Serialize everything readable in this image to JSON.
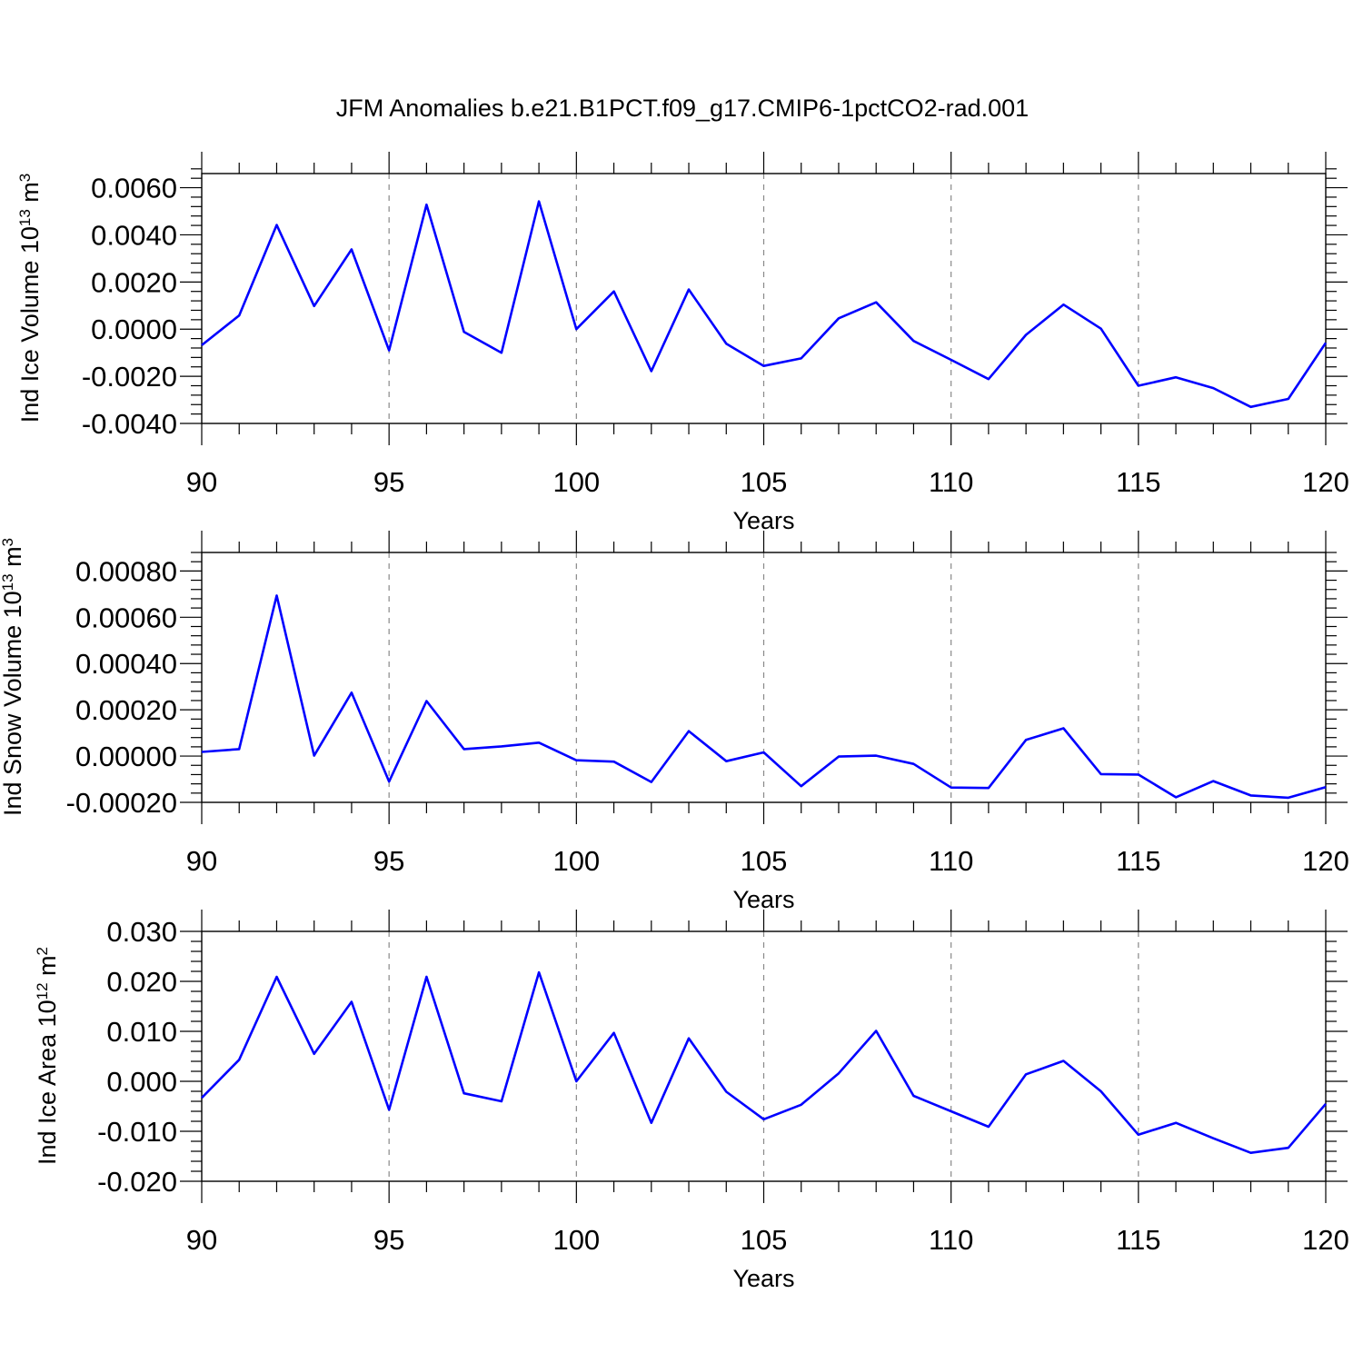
{
  "title": "JFM Anomalies b.e21.B1PCT.f09_g17.CMIP6-1pctCO2-rad.001",
  "colors": {
    "line": "#0000ff",
    "grid": "#888888"
  },
  "chart_data": [
    {
      "type": "line",
      "ylabel": "Ind Ice Volume 10",
      "ylabel_exp": "13",
      "ylabel_unit": "m",
      "ylabel_unit_exp": "3",
      "xlabel": "Years",
      "xlim": [
        90,
        120
      ],
      "ylim": [
        -0.004,
        0.0066
      ],
      "x_ticks": [
        90,
        95,
        100,
        105,
        110,
        115,
        120
      ],
      "x_ticklabels": [
        "90",
        "95",
        "100",
        "105",
        "110",
        "115",
        "120"
      ],
      "y_ticks": [
        -0.004,
        -0.002,
        0,
        0.002,
        0.004,
        0.006
      ],
      "y_ticklabels": [
        "-0.0040",
        "-0.0020",
        "0.0000",
        "0.0020",
        "0.0040",
        "0.0060"
      ],
      "y_minor_step": 0.0004,
      "grid_x": true,
      "x": [
        90,
        91,
        92,
        93,
        94,
        95,
        96,
        97,
        98,
        99,
        100,
        101,
        102,
        103,
        104,
        105,
        106,
        107,
        108,
        109,
        110,
        111,
        112,
        113,
        114,
        115,
        116,
        117,
        118,
        119,
        120
      ],
      "values": [
        -0.00068,
        0.00058,
        0.00442,
        0.00098,
        0.00338,
        -0.0009,
        0.00528,
        -0.00012,
        -0.001,
        0.00542,
        0.0,
        0.0016,
        -0.00178,
        0.00168,
        -0.00062,
        -0.00156,
        -0.00124,
        0.00046,
        0.00114,
        -0.0005,
        -0.0013,
        -0.00212,
        -0.00024,
        0.00104,
        2e-05,
        -0.0024,
        -0.00204,
        -0.0025,
        -0.0033,
        -0.00296,
        -0.00058
      ]
    },
    {
      "type": "line",
      "ylabel": "Ind Snow Volume 10",
      "ylabel_exp": "13",
      "ylabel_unit": "m",
      "ylabel_unit_exp": "3",
      "xlabel": "Years",
      "xlim": [
        90,
        120
      ],
      "ylim": [
        -0.0002,
        0.00088
      ],
      "x_ticks": [
        90,
        95,
        100,
        105,
        110,
        115,
        120
      ],
      "x_ticklabels": [
        "90",
        "95",
        "100",
        "105",
        "110",
        "115",
        "120"
      ],
      "y_ticks": [
        -0.0002,
        0,
        0.0002,
        0.0004,
        0.0006,
        0.0008
      ],
      "y_ticklabels": [
        "-0.00020",
        "0.00000",
        "0.00020",
        "0.00040",
        "0.00060",
        "0.00080"
      ],
      "y_minor_step": 4e-05,
      "grid_x": true,
      "x": [
        90,
        91,
        92,
        93,
        94,
        95,
        96,
        97,
        98,
        99,
        100,
        101,
        102,
        103,
        104,
        105,
        106,
        107,
        108,
        109,
        110,
        111,
        112,
        113,
        114,
        115,
        116,
        117,
        118,
        119,
        120
      ],
      "values": [
        1.8e-05,
        3e-05,
        0.000694,
        2e-06,
        0.000274,
        -0.00011,
        0.000238,
        3e-05,
        4.2e-05,
        5.8e-05,
        -1.8e-05,
        -2.4e-05,
        -0.000112,
        0.000108,
        -2.2e-05,
        1.6e-05,
        -0.00013,
        -2e-06,
        2e-06,
        -3.4e-05,
        -0.000136,
        -0.000138,
        7e-05,
        0.00012,
        -7.8e-05,
        -8e-05,
        -0.000178,
        -0.000108,
        -0.00017,
        -0.00018,
        -0.000134
      ]
    },
    {
      "type": "line",
      "ylabel": "Ind Ice Area 10",
      "ylabel_exp": "12",
      "ylabel_unit": "m",
      "ylabel_unit_exp": "2",
      "xlabel": "Years",
      "xlim": [
        90,
        120
      ],
      "ylim": [
        -0.02,
        0.03
      ],
      "x_ticks": [
        90,
        95,
        100,
        105,
        110,
        115,
        120
      ],
      "x_ticklabels": [
        "90",
        "95",
        "100",
        "105",
        "110",
        "115",
        "120"
      ],
      "y_ticks": [
        -0.02,
        -0.01,
        0,
        0.01,
        0.02,
        0.03
      ],
      "y_ticklabels": [
        "-0.020",
        "-0.010",
        "0.000",
        "0.010",
        "0.020",
        "0.030"
      ],
      "y_minor_step": 0.002,
      "grid_x": true,
      "x": [
        90,
        91,
        92,
        93,
        94,
        95,
        96,
        97,
        98,
        99,
        100,
        101,
        102,
        103,
        104,
        105,
        106,
        107,
        108,
        109,
        110,
        111,
        112,
        113,
        114,
        115,
        116,
        117,
        118,
        119,
        120
      ],
      "values": [
        -0.0033,
        0.0043,
        0.0209,
        0.0055,
        0.0159,
        -0.0057,
        0.0209,
        -0.0024,
        -0.004,
        0.0218,
        0.0,
        0.0097,
        -0.0083,
        0.0086,
        -0.0021,
        -0.0076,
        -0.0047,
        0.0016,
        0.0101,
        -0.0029,
        -0.006,
        -0.0091,
        0.0014,
        0.0041,
        -0.002,
        -0.0107,
        -0.0083,
        -0.0114,
        -0.0143,
        -0.0133,
        -0.0045
      ]
    }
  ]
}
